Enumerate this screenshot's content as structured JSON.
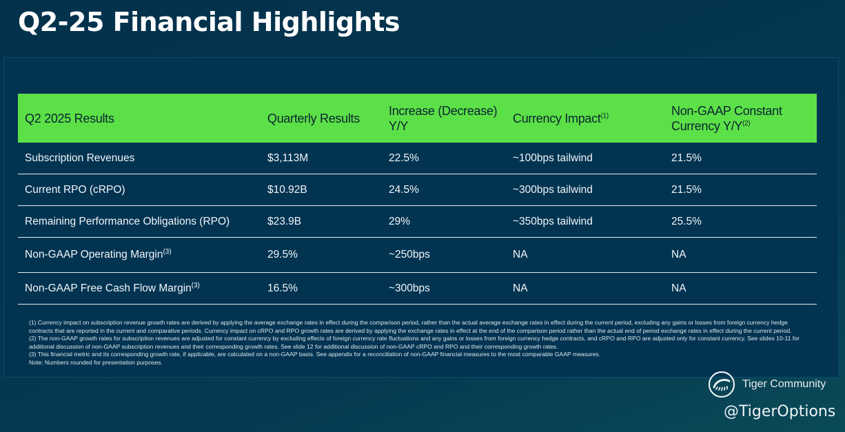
{
  "title": "Q2-25 Financial Highlights",
  "table": {
    "headers": [
      {
        "text": "Q2 2025 Results",
        "sup": ""
      },
      {
        "text": "Quarterly Results",
        "sup": ""
      },
      {
        "text": "Increase (Decrease) Y/Y",
        "sup": ""
      },
      {
        "text": "Currency Impact",
        "sup": "(1)"
      },
      {
        "text": "Non-GAAP Constant Currency Y/Y",
        "sup": "(2)"
      }
    ],
    "rows": [
      {
        "metric": "Subscription Revenues",
        "sup": "",
        "quarterly": "$3,113M",
        "change": "22.5%",
        "currency": "~100bps tailwind",
        "constant": "21.5%"
      },
      {
        "metric": "Current RPO (cRPO)",
        "sup": "",
        "quarterly": "$10.92B",
        "change": "24.5%",
        "currency": "~300bps tailwind",
        "constant": "21.5%"
      },
      {
        "metric": "Remaining Performance Obligations (RPO)",
        "sup": "",
        "quarterly": "$23.9B",
        "change": "29%",
        "currency": "~350bps tailwind",
        "constant": "25.5%"
      },
      {
        "metric": "Non-GAAP Operating Margin",
        "sup": "(3)",
        "quarterly": "29.5%",
        "change": "~250bps",
        "currency": "NA",
        "constant": "NA"
      },
      {
        "metric": "Non-GAAP Free Cash Flow Margin",
        "sup": "(3)",
        "quarterly": "16.5%",
        "change": "~300bps",
        "currency": "NA",
        "constant": "NA"
      }
    ]
  },
  "footnotes": [
    "(1) Currency impact on subscription revenue growth rates are derived by applying the average exchange rates in effect during the comparison period, rather than the actual average exchange rates in effect during the current period, excluding any gains or losses from foreign currency hedge contracts that are reported in the current and comparative periods. Currency impact on cRPO and RPO growth rates are derived by applying the exchange rates in effect at the end of the comparison period rather than the actual end of period exchange rates in effect during the current period.",
    "(2) The non-GAAP growth rates for subscription revenues are adjusted for constant currency by excluding effects of foreign currency rate fluctuations and any gains or losses from foreign currency hedge contracts, and cRPO and RPO are adjusted only for constant currency. See slides 10-11 for additional discussion of non-GAAP subscription revenues and their corresponding growth rates. See slide 12 for additional discussion of non-GAAP cRPO and RPO and their corresponding growth rates.",
    "(3) This financial metric and its corresponding growth rate, if applicable, are calculated on a non-GAAP basis. See appendix for a reconciliation of non-GAAP financial measures to the most comparable GAAP measures.",
    "Note: Numbers rounded for presentation purposes."
  ],
  "watermark": {
    "brand": "Tiger Community",
    "handle": "@TigerOptions",
    "logo_icon": "tiger-claw-icon"
  }
}
